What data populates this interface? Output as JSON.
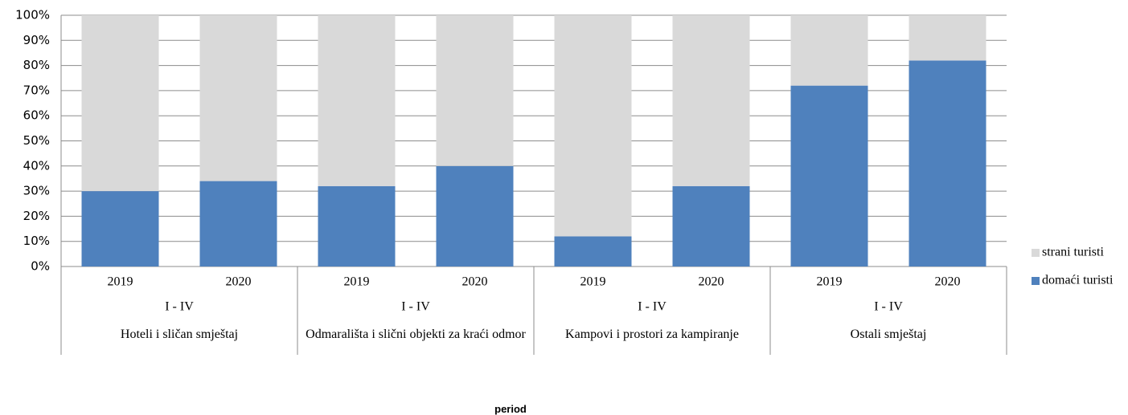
{
  "chart_data": {
    "type": "stacked_bar",
    "x_label": "period",
    "categories": [
      "2019",
      "2020",
      "2019",
      "2020",
      "2019",
      "2020",
      "2019",
      "2020"
    ],
    "periods": [
      "I - IV",
      "I - IV",
      "I - IV",
      "I - IV"
    ],
    "groups": [
      "Hoteli i sličan smještaj",
      "Odmarališta i slični objekti za kraći odmor",
      "Kampovi i prostori za kampiranje",
      "Ostali smještaj"
    ],
    "series": [
      {
        "name": "domaći turisti",
        "color": "#4f81bd",
        "values": [
          30,
          34,
          32,
          40,
          12,
          32,
          72,
          82
        ]
      },
      {
        "name": "strani turisti",
        "color": "#d9d9d9",
        "values": [
          70,
          66,
          68,
          60,
          88,
          68,
          28,
          18
        ]
      }
    ],
    "ylim": [
      0,
      100
    ],
    "yticks": [
      {
        "value": 0,
        "label": "0%"
      },
      {
        "value": 10,
        "label": "10%"
      },
      {
        "value": 20,
        "label": "20%"
      },
      {
        "value": 30,
        "label": "30%"
      },
      {
        "value": 40,
        "label": "40%"
      },
      {
        "value": 50,
        "label": "50%"
      },
      {
        "value": 60,
        "label": "60%"
      },
      {
        "value": 70,
        "label": "70%"
      },
      {
        "value": 80,
        "label": "80%"
      },
      {
        "value": 90,
        "label": "90%"
      },
      {
        "value": 100,
        "label": "100%"
      }
    ],
    "grid": true,
    "legend": "right"
  }
}
